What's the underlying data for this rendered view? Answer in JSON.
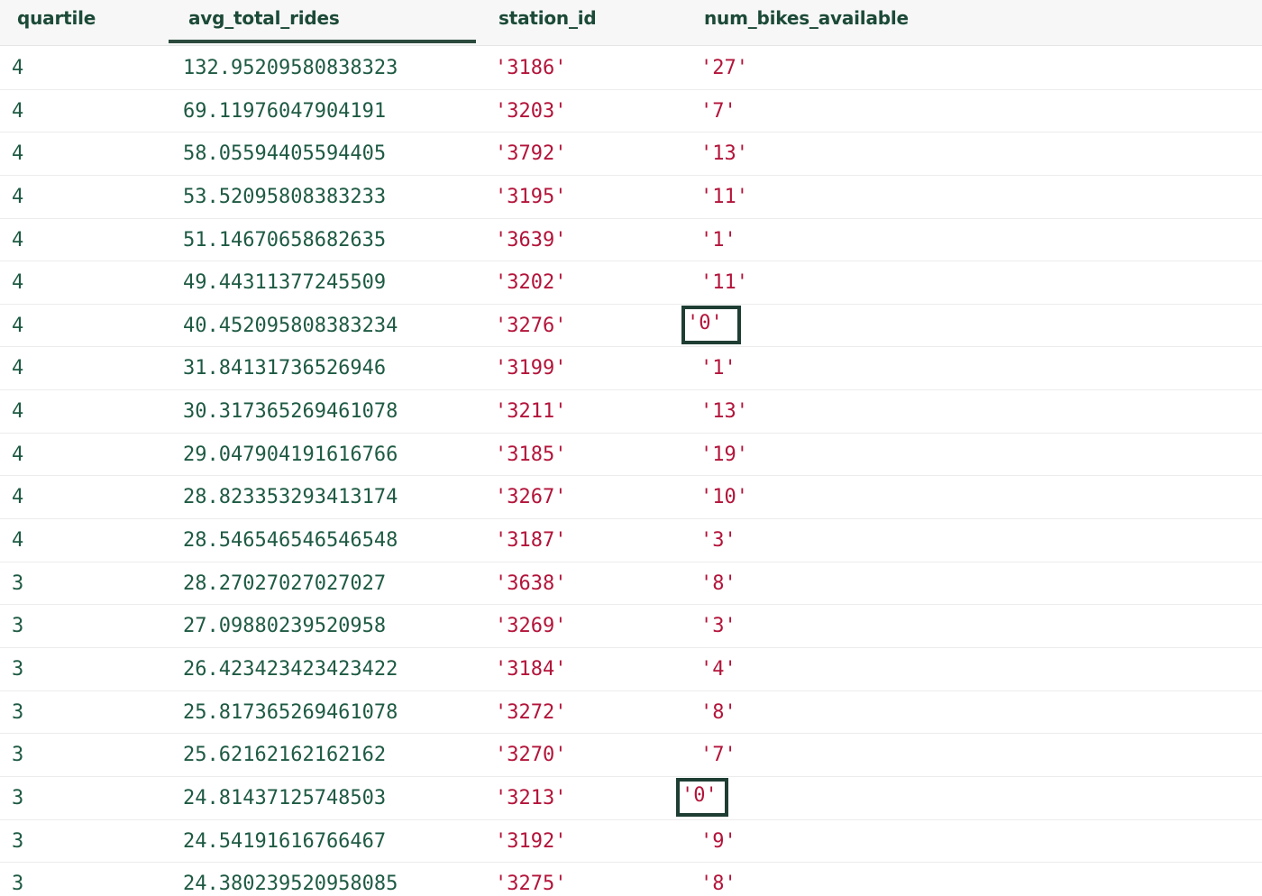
{
  "columns": {
    "quartile": "quartile",
    "avg_total_rides": "avg_total_rides",
    "station_id": "station_id",
    "num_bikes_available": "num_bikes_available"
  },
  "sorted_column": "avg_total_rides",
  "rows": [
    {
      "quartile": "4",
      "avg_total_rides": "132.95209580838323",
      "station_id": "'3186'",
      "num_bikes_available": "'27'",
      "highlighted": false
    },
    {
      "quartile": "4",
      "avg_total_rides": "69.11976047904191",
      "station_id": "'3203'",
      "num_bikes_available": "'7'",
      "highlighted": false
    },
    {
      "quartile": "4",
      "avg_total_rides": "58.05594405594405",
      "station_id": "'3792'",
      "num_bikes_available": "'13'",
      "highlighted": false
    },
    {
      "quartile": "4",
      "avg_total_rides": "53.52095808383233",
      "station_id": "'3195'",
      "num_bikes_available": "'11'",
      "highlighted": false
    },
    {
      "quartile": "4",
      "avg_total_rides": "51.14670658682635",
      "station_id": "'3639'",
      "num_bikes_available": "'1'",
      "highlighted": false
    },
    {
      "quartile": "4",
      "avg_total_rides": "49.44311377245509",
      "station_id": "'3202'",
      "num_bikes_available": "'11'",
      "highlighted": false
    },
    {
      "quartile": "4",
      "avg_total_rides": "40.452095808383234",
      "station_id": "'3276'",
      "num_bikes_available": "'0'",
      "highlighted": true
    },
    {
      "quartile": "4",
      "avg_total_rides": "31.84131736526946",
      "station_id": "'3199'",
      "num_bikes_available": "'1'",
      "highlighted": false
    },
    {
      "quartile": "4",
      "avg_total_rides": "30.317365269461078",
      "station_id": "'3211'",
      "num_bikes_available": "'13'",
      "highlighted": false
    },
    {
      "quartile": "4",
      "avg_total_rides": "29.047904191616766",
      "station_id": "'3185'",
      "num_bikes_available": "'19'",
      "highlighted": false
    },
    {
      "quartile": "4",
      "avg_total_rides": "28.823353293413174",
      "station_id": "'3267'",
      "num_bikes_available": "'10'",
      "highlighted": false
    },
    {
      "quartile": "4",
      "avg_total_rides": "28.546546546546548",
      "station_id": "'3187'",
      "num_bikes_available": "'3'",
      "highlighted": false
    },
    {
      "quartile": "3",
      "avg_total_rides": "28.27027027027027",
      "station_id": "'3638'",
      "num_bikes_available": "'8'",
      "highlighted": false
    },
    {
      "quartile": "3",
      "avg_total_rides": "27.09880239520958",
      "station_id": "'3269'",
      "num_bikes_available": "'3'",
      "highlighted": false
    },
    {
      "quartile": "3",
      "avg_total_rides": "26.423423423423422",
      "station_id": "'3184'",
      "num_bikes_available": "'4'",
      "highlighted": false
    },
    {
      "quartile": "3",
      "avg_total_rides": "25.817365269461078",
      "station_id": "'3272'",
      "num_bikes_available": "'8'",
      "highlighted": false
    },
    {
      "quartile": "3",
      "avg_total_rides": "25.62162162162162",
      "station_id": "'3270'",
      "num_bikes_available": "'7'",
      "highlighted": false
    },
    {
      "quartile": "3",
      "avg_total_rides": "24.81437125748503",
      "station_id": "'3213'",
      "num_bikes_available": "'0'",
      "highlighted": true
    },
    {
      "quartile": "3",
      "avg_total_rides": "24.54191616766467",
      "station_id": "'3192'",
      "num_bikes_available": "'9'",
      "highlighted": false
    },
    {
      "quartile": "3",
      "avg_total_rides": "24.380239520958085",
      "station_id": "'3275'",
      "num_bikes_available": "'8'",
      "highlighted": false
    }
  ],
  "colors": {
    "header_text": "#1c4a38",
    "number_text": "#1e5a43",
    "string_text": "#b3143a",
    "highlight_border": "#1f3e33",
    "sort_indicator": "#2b4a3e"
  }
}
